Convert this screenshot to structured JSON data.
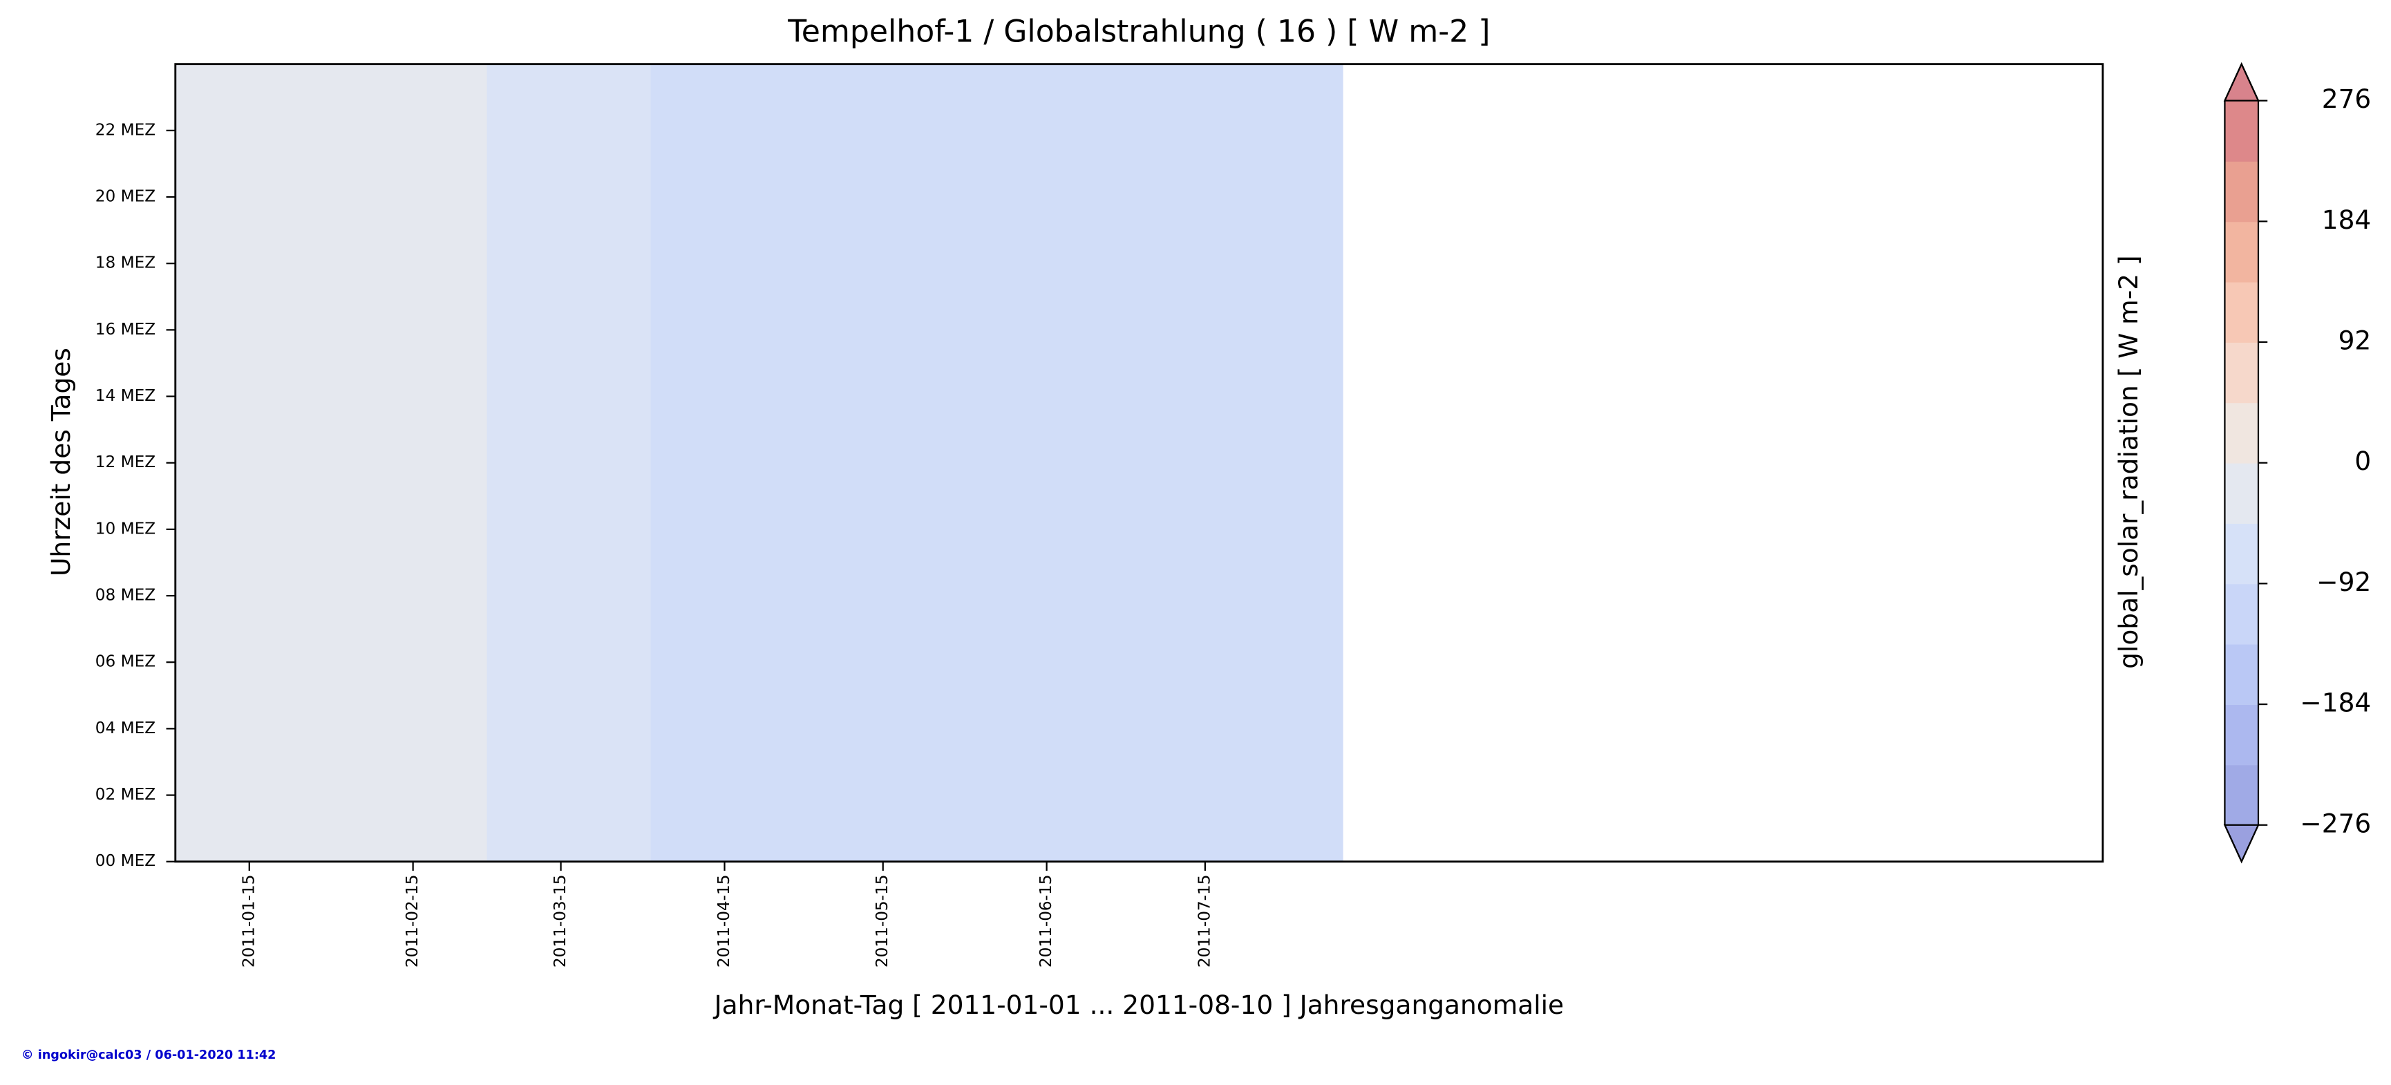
{
  "chart_data": {
    "type": "heatmap",
    "title": "Tempelhof-1 / Globalstrahlung ( 16 ) [ W m-2 ]",
    "x_label": "Jahr-Monat-Tag [ 2011-01-01 ... 2011-08-10 ] Jahresganganomalie",
    "y_label": "Uhrzeit des Tages",
    "x_edges": [
      "2011-01-01",
      "2011-02-01",
      "2011-03-01",
      "2011-04-01",
      "2011-05-01",
      "2011-06-01",
      "2011-07-01",
      "2011-08-01",
      "2011-08-10"
    ],
    "values": [
      -20,
      -20,
      -55,
      -85,
      -85,
      -85,
      -85,
      -85
    ],
    "xlim": [
      "2011-01-01",
      "2012-01-01"
    ],
    "xticks": [
      "2011-01-15",
      "2011-02-15",
      "2011-03-15",
      "2011-04-15",
      "2011-05-15",
      "2011-06-15",
      "2011-07-15"
    ],
    "ylim": [
      0,
      24
    ],
    "yticks": [
      {
        "value": 0,
        "label": "00 MEZ"
      },
      {
        "value": 2,
        "label": "02 MEZ"
      },
      {
        "value": 4,
        "label": "04 MEZ"
      },
      {
        "value": 6,
        "label": "06 MEZ"
      },
      {
        "value": 8,
        "label": "08 MEZ"
      },
      {
        "value": 10,
        "label": "10 MEZ"
      },
      {
        "value": 12,
        "label": "12 MEZ"
      },
      {
        "value": 14,
        "label": "14 MEZ"
      },
      {
        "value": 16,
        "label": "16 MEZ"
      },
      {
        "value": 18,
        "label": "18 MEZ"
      },
      {
        "value": 20,
        "label": "20 MEZ"
      },
      {
        "value": 22,
        "label": "22 MEZ"
      }
    ],
    "colorbar": {
      "label": "global_solar_radiation [ W m-2 ]",
      "levels": [
        -276,
        -230,
        -184,
        -138,
        -92,
        -46,
        0,
        46,
        92,
        138,
        184,
        230,
        276
      ],
      "colors": [
        "#a0aae6",
        "#acb8ef",
        "#bac8f5",
        "#c9d6f8",
        "#d6e1f8",
        "#e4e8f0",
        "#f0e6e0",
        "#f6d8cb",
        "#f7c8b5",
        "#f2b5a0",
        "#e9a091",
        "#dd888a"
      ],
      "under": "#9aa0df",
      "over": "#d8838c",
      "ticks": [
        {
          "value": -276,
          "label": "−276"
        },
        {
          "value": -184,
          "label": "−184"
        },
        {
          "value": -92,
          "label": "−92"
        },
        0,
        92,
        184,
        276
      ]
    },
    "footer": "© ingokir@calc03 / 06-01-2020 11:42"
  }
}
